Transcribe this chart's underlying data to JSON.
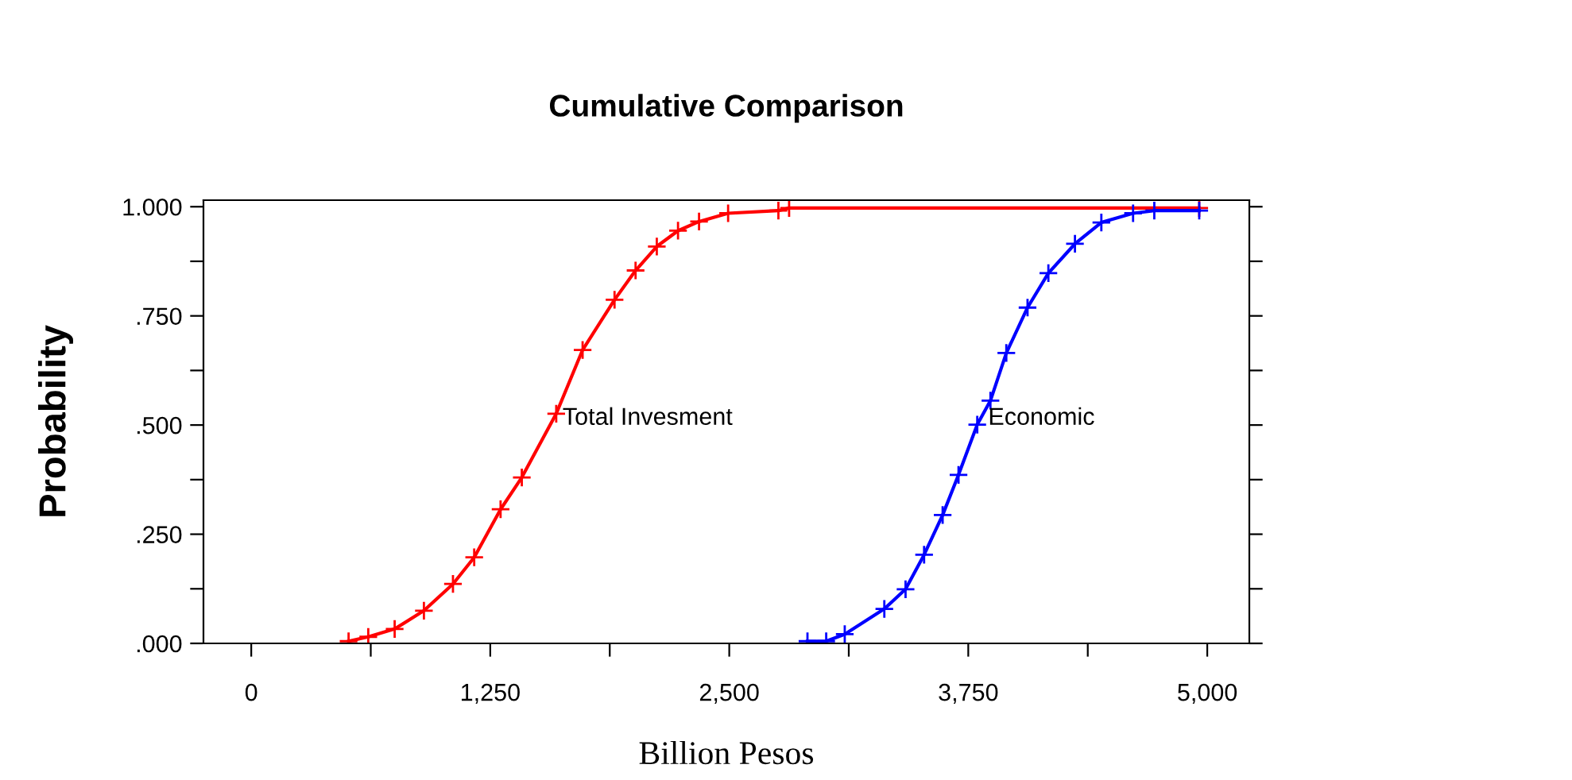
{
  "chart_data": {
    "type": "line",
    "title": "Cumulative Comparison",
    "xlabel": "Billion Pesos",
    "ylabel": "Probability",
    "series": [
      {
        "color": "#ff0000",
        "x": [
          509,
          612,
          750,
          903,
          1055,
          1166,
          1304,
          1415,
          1595,
          1733,
          1900,
          2010,
          2121,
          2232,
          2342,
          2494,
          2757,
          2813,
          4958
        ],
        "values": [
          0.005,
          0.015,
          0.033,
          0.075,
          0.136,
          0.197,
          0.307,
          0.38,
          0.526,
          0.672,
          0.787,
          0.854,
          0.909,
          0.945,
          0.966,
          0.985,
          0.991,
          0.997,
          0.997
        ]
      },
      {
        "color": "#0000ff",
        "x": [
          2909,
          3007,
          3104,
          3311,
          3422,
          3519,
          3616,
          3699,
          3797,
          3866,
          3949,
          4060,
          4169,
          4308,
          4446,
          4612,
          4723,
          4958
        ],
        "values": [
          0.005,
          0.005,
          0.021,
          0.079,
          0.124,
          0.203,
          0.294,
          0.386,
          0.501,
          0.556,
          0.665,
          0.769,
          0.848,
          0.915,
          0.964,
          0.985,
          0.991,
          0.991
        ]
      }
    ],
    "annotations": [
      {
        "text": "Total Invesment",
        "x": 1628,
        "y": 0.515
      },
      {
        "text": "Economic",
        "x": 3854,
        "y": 0.515
      }
    ],
    "xlim": [
      -250,
      5220
    ],
    "ylim": [
      0,
      1.015
    ],
    "xticks": [
      0,
      {
        "value": 625,
        "label": null
      },
      {
        "value": 1250,
        "label": "1,250"
      },
      {
        "value": 1875,
        "label": null
      },
      {
        "value": 2500,
        "label": "2,500"
      },
      {
        "value": 3125,
        "label": null
      },
      {
        "value": 3750,
        "label": "3,750"
      },
      {
        "value": 4375,
        "label": null
      },
      {
        "value": 5000,
        "label": "5,000"
      }
    ],
    "yticks": [
      {
        "value": 0,
        "label": ".000"
      },
      {
        "value": 0.125,
        "label": null
      },
      {
        "value": 0.25,
        "label": ".250"
      },
      {
        "value": 0.375,
        "label": null
      },
      {
        "value": 0.5,
        "label": ".500"
      },
      {
        "value": 0.625,
        "label": null
      },
      {
        "value": 0.75,
        "label": ".750"
      },
      {
        "value": 0.875,
        "label": null
      },
      {
        "value": 1,
        "label": "1.000"
      }
    ],
    "grid": false,
    "legend": false,
    "marker": "cross",
    "line_style": "solid"
  }
}
